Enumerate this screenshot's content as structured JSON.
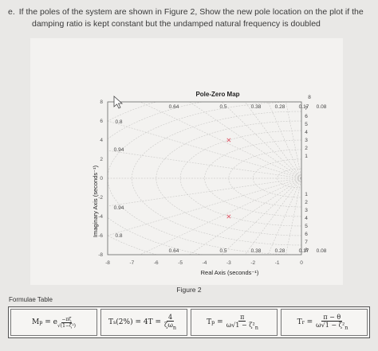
{
  "question": {
    "label": "e.",
    "line1": "If the poles of the system are shown in Figure 2, Show the new pole location on the plot if the",
    "line2": "damping ratio is kept constant but the undamped natural frequency is doubled"
  },
  "figure_caption": "Figure 2",
  "formulae_label": "Formulae Table",
  "formulas": {
    "mp_lhs": "M",
    "mp_sub": "p",
    "mp_rhs": "= e",
    "mp_exp_num": "−πζ",
    "mp_exp_den": "√(1−ζ²)",
    "ts_text": "T",
    "ts_sub": "s",
    "ts_rest": "(2%) = 4T =",
    "ts_num": "4",
    "ts_den": "ζω",
    "ts_den_sub": "n",
    "tp_lhs": "T",
    "tp_sub": "p",
    "tp_eq": "=",
    "tp_num": "π",
    "tp_den": "ω√1 − ζ²",
    "tp_den_sub": "n",
    "tr_lhs": "T",
    "tr_sub": "r",
    "tr_eq": "=",
    "tr_num": "π − θ",
    "tr_den": "ω√1 − ζ²",
    "tr_den_sub": "n"
  },
  "chart_data": {
    "type": "scatter",
    "title": "Pole-Zero Map",
    "xlabel": "Real Axis (seconds⁻¹)",
    "ylabel": "Imaginary Axis (seconds⁻¹)",
    "xlim": [
      -8,
      0
    ],
    "ylim": [
      -8,
      8
    ],
    "grid": true,
    "x_ticks": [
      "-8",
      "-7",
      "-6",
      "-5",
      "-4",
      "-3",
      "-2",
      "-1",
      "0"
    ],
    "y_ticks": [
      "-8",
      "-6",
      "-4",
      "-2",
      "0",
      "2",
      "4",
      "6",
      "8"
    ],
    "damping_labels_top": [
      "0.64",
      "0.5",
      "0.38",
      "0.28",
      "0.17",
      "0.08"
    ],
    "damping_labels_bottom": [
      "0.64",
      "0.5",
      "0.38",
      "0.28",
      "0.17",
      "0.08"
    ],
    "damping_labels_left": [
      "0.8",
      "0.94",
      "0.94",
      "0.8"
    ],
    "wn_labels_upper": [
      "8",
      "7",
      "6",
      "5",
      "4",
      "3",
      "2",
      "1"
    ],
    "wn_labels_lower": [
      "1",
      "2",
      "3",
      "4",
      "5",
      "6",
      "7",
      "8"
    ],
    "poles": [
      {
        "x": -3.0,
        "y": 4.0,
        "color": "#e05a6a"
      },
      {
        "x": -3.0,
        "y": -4.0,
        "color": "#e05a6a"
      }
    ],
    "marker_color": "#e05a6a"
  }
}
